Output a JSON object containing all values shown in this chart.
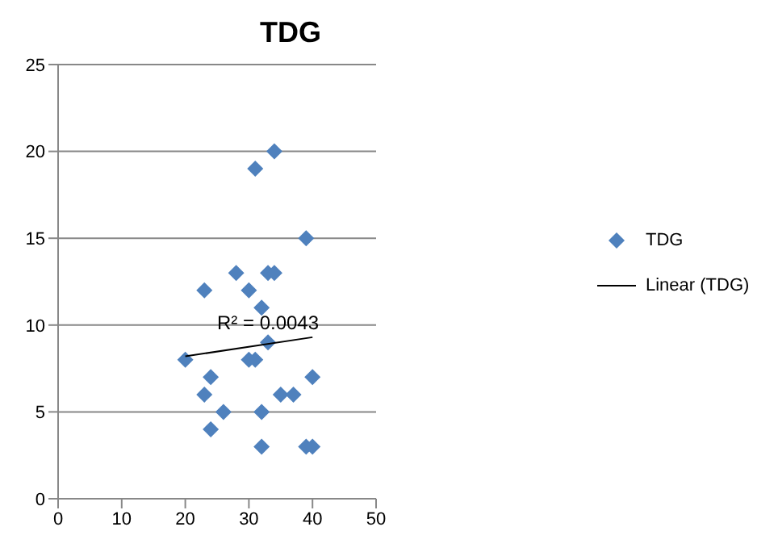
{
  "chart_data": {
    "type": "scatter",
    "title": "TDG",
    "xlim": [
      0,
      50
    ],
    "xticks": [
      0,
      10,
      20,
      30,
      40,
      50
    ],
    "ylim": [
      0,
      25
    ],
    "yticks": [
      0,
      5,
      10,
      15,
      20,
      25
    ],
    "grid": "y",
    "legend": "right",
    "marker": "diamond",
    "series": [
      {
        "name": "TDG",
        "color": "#4f81bd",
        "x": [
          20,
          23,
          23,
          24,
          24,
          26,
          28,
          30,
          30,
          31,
          31,
          32,
          32,
          32,
          33,
          33,
          34,
          34,
          35,
          37,
          39,
          39,
          40,
          40
        ],
        "values": [
          8,
          12,
          6,
          7,
          4,
          5,
          13,
          12,
          8,
          8,
          19,
          11,
          5,
          3,
          9,
          13,
          13,
          20,
          6,
          6,
          15,
          3,
          3,
          7
        ]
      },
      {
        "name": "Linear (TDG)",
        "type": "line",
        "color": "#000000",
        "x": [
          20,
          40
        ],
        "values": [
          8.2,
          9.3
        ],
        "marker": "none"
      }
    ],
    "annotations": [
      {
        "text": "R² = 0.0043",
        "x": 33,
        "y": 9.3
      }
    ]
  }
}
